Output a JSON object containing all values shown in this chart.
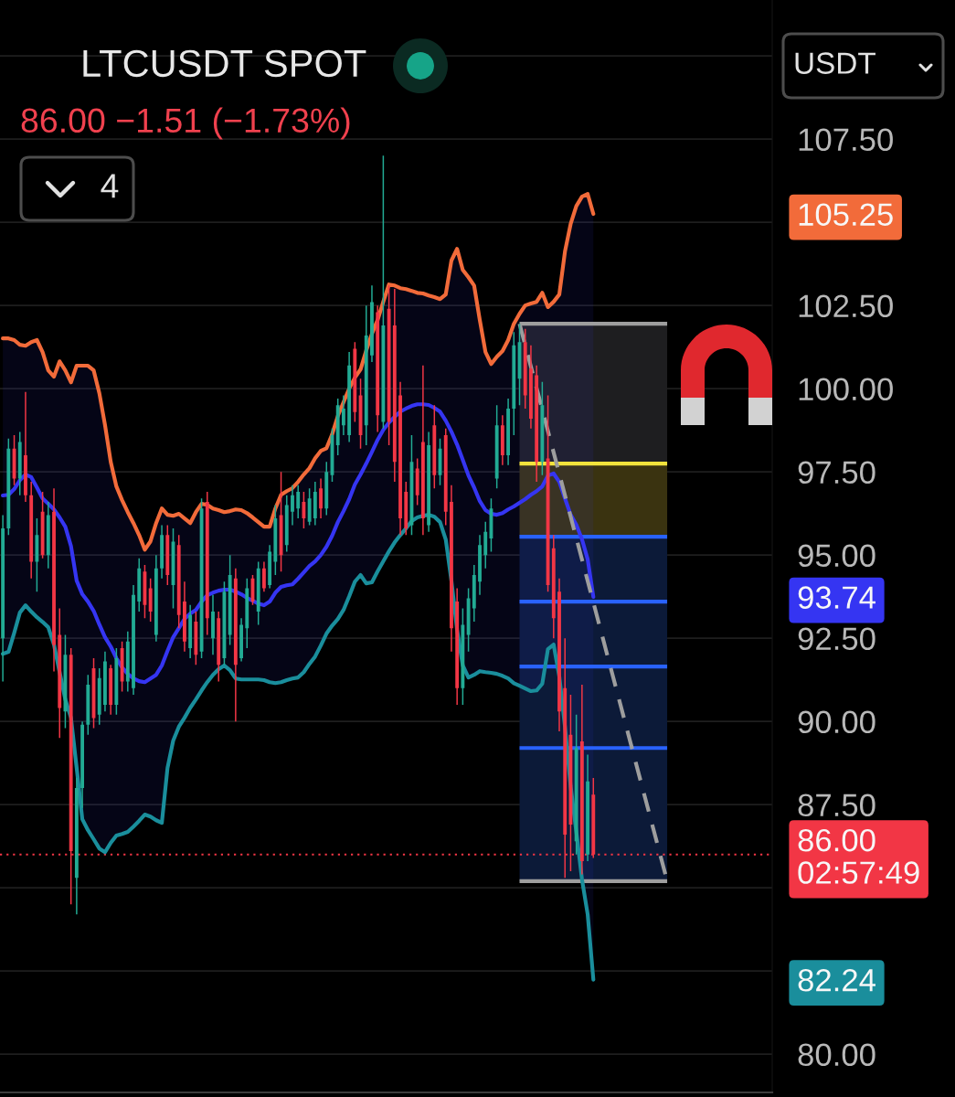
{
  "chart_data": {
    "type": "candlestick",
    "title": "LTCUSDT SPOT",
    "subtitle": "86.00 −1.51 (−1.73%)",
    "annotations": [
      "4",
      "USDT"
    ],
    "categories": [
      null,
      null,
      null,
      null,
      null,
      null,
      null,
      null,
      null,
      null,
      null,
      null,
      null,
      null,
      null,
      null,
      null,
      null,
      null,
      null,
      null,
      null,
      null,
      null,
      null,
      null,
      null,
      null,
      null,
      null,
      null,
      null,
      null,
      null,
      null,
      null,
      null,
      null,
      null,
      null,
      null,
      null,
      null,
      null,
      null,
      null,
      null,
      null,
      null,
      null,
      null,
      null,
      null,
      null,
      null,
      null,
      null,
      null,
      null,
      null,
      null,
      null,
      null,
      null,
      null,
      null,
      null,
      null,
      null,
      null,
      null,
      null,
      null,
      null,
      null,
      null,
      null,
      null,
      null,
      null,
      null,
      null,
      null,
      null,
      null,
      null,
      null,
      null,
      null,
      null,
      null,
      null,
      null,
      null,
      null,
      null,
      null,
      null,
      null,
      null,
      null,
      null,
      null,
      null,
      null,
      null,
      null,
      null,
      null,
      null,
      null,
      null,
      null,
      null,
      null,
      null,
      null,
      null,
      null,
      null,
      null,
      null,
      null,
      null,
      null,
      null,
      null,
      null,
      null,
      null,
      null,
      null,
      null,
      null,
      null,
      null
    ],
    "ohlc": [
      [
        92.5,
        96.2,
        91.2,
        95.8
      ],
      [
        95.8,
        98.5,
        95.6,
        98.2
      ],
      [
        98.2,
        98.6,
        97.1,
        97.3
      ],
      [
        97.3,
        98.7,
        96.8,
        98.4
      ],
      [
        98.0,
        99.9,
        96.6,
        96.8
      ],
      [
        96.8,
        97.2,
        94.3,
        94.8
      ],
      [
        94.8,
        96.1,
        93.9,
        95.6
      ],
      [
        96.3,
        96.9,
        94.9,
        95.0
      ],
      [
        95.0,
        96.6,
        94.6,
        96.2
      ],
      [
        96.3,
        97.0,
        91.5,
        92.3
      ],
      [
        92.6,
        93.4,
        89.5,
        90.4
      ],
      [
        90.3,
        92.6,
        89.8,
        92.0
      ],
      [
        92.0,
        92.2,
        84.5,
        86.1
      ],
      [
        85.3,
        88.3,
        84.2,
        88.0
      ],
      [
        88.0,
        90.0,
        87.4,
        89.9
      ],
      [
        89.9,
        91.4,
        89.6,
        91.1
      ],
      [
        91.6,
        91.9,
        89.8,
        90.1
      ],
      [
        90.2,
        91.6,
        89.9,
        91.3
      ],
      [
        90.5,
        92.1,
        90.3,
        91.8
      ],
      [
        91.6,
        91.7,
        90.2,
        90.5
      ],
      [
        90.5,
        92.2,
        90.2,
        91.9
      ],
      [
        92.2,
        92.4,
        90.9,
        91.2
      ],
      [
        91.2,
        92.7,
        90.9,
        92.4
      ],
      [
        91.0,
        94.1,
        90.8,
        93.8
      ],
      [
        93.6,
        94.9,
        93.3,
        94.6
      ],
      [
        94.5,
        94.7,
        93.1,
        93.5
      ],
      [
        94.0,
        94.3,
        93.0,
        93.3
      ],
      [
        92.6,
        95.0,
        92.4,
        94.6
      ],
      [
        94.6,
        95.9,
        94.3,
        95.6
      ],
      [
        95.6,
        95.9,
        94.1,
        94.4
      ],
      [
        94.1,
        95.8,
        93.4,
        95.4
      ],
      [
        95.3,
        95.6,
        92.8,
        93.2
      ],
      [
        93.6,
        94.2,
        92.1,
        92.4
      ],
      [
        92.2,
        93.5,
        91.9,
        93.2
      ],
      [
        93.0,
        93.3,
        91.7,
        92.0
      ],
      [
        92.1,
        96.7,
        91.9,
        96.4
      ],
      [
        96.6,
        96.9,
        92.6,
        93.1
      ],
      [
        92.5,
        93.8,
        92.0,
        93.3
      ],
      [
        93.1,
        93.3,
        91.2,
        91.7
      ],
      [
        91.9,
        94.2,
        91.7,
        93.9
      ],
      [
        92.6,
        95.0,
        92.3,
        94.4
      ],
      [
        94.3,
        94.6,
        90.0,
        91.7
      ],
      [
        91.9,
        93.1,
        91.8,
        92.9
      ],
      [
        92.8,
        94.3,
        92.2,
        94.0
      ],
      [
        94.3,
        94.4,
        93.5,
        93.6
      ],
      [
        93.3,
        94.8,
        92.9,
        94.6
      ],
      [
        94.6,
        94.8,
        93.9,
        94.0
      ],
      [
        94.1,
        95.3,
        94.0,
        95.1
      ],
      [
        94.8,
        96.5,
        94.4,
        96.1
      ],
      [
        96.2,
        97.5,
        94.5,
        95.0
      ],
      [
        95.3,
        96.8,
        95.1,
        96.5
      ],
      [
        96.3,
        97.1,
        95.9,
        96.8
      ],
      [
        96.4,
        97.1,
        96.1,
        96.9
      ],
      [
        96.6,
        96.9,
        95.8,
        96.1
      ],
      [
        96.0,
        97.0,
        95.9,
        96.7
      ],
      [
        96.1,
        97.2,
        95.9,
        96.9
      ],
      [
        97.0,
        97.3,
        96.1,
        96.4
      ],
      [
        96.4,
        97.8,
        96.2,
        97.5
      ],
      [
        97.4,
        98.8,
        97.2,
        98.6
      ],
      [
        98.3,
        99.7,
        98.0,
        99.5
      ],
      [
        98.9,
        99.8,
        98.6,
        99.4
      ],
      [
        98.6,
        101.1,
        98.4,
        100.7
      ],
      [
        101.2,
        101.4,
        99.0,
        99.3
      ],
      [
        99.8,
        100.3,
        98.2,
        98.6
      ],
      [
        98.9,
        102.5,
        98.3,
        101.6
      ],
      [
        101.0,
        103.1,
        100.8,
        102.6
      ],
      [
        102.3,
        102.5,
        98.7,
        99.2
      ],
      [
        99.0,
        107.0,
        98.8,
        101.9
      ],
      [
        102.4,
        103.1,
        98.3,
        99.0
      ],
      [
        101.9,
        103.0,
        97.2,
        97.8
      ],
      [
        99.8,
        100.2,
        95.6,
        96.1
      ],
      [
        96.9,
        97.2,
        95.6,
        95.8
      ],
      [
        95.9,
        98.6,
        95.6,
        97.8
      ],
      [
        97.6,
        97.9,
        96.5,
        96.8
      ],
      [
        98.4,
        100.7,
        95.6,
        96.1
      ],
      [
        95.9,
        98.7,
        95.7,
        98.3
      ],
      [
        98.9,
        99.5,
        97.0,
        97.4
      ],
      [
        97.4,
        98.5,
        97.1,
        98.2
      ],
      [
        98.6,
        98.8,
        95.9,
        96.3
      ],
      [
        96.6,
        97.1,
        92.1,
        92.8
      ],
      [
        93.6,
        94.0,
        90.5,
        91.0
      ],
      [
        91.0,
        93.4,
        90.5,
        92.9
      ],
      [
        92.6,
        94.0,
        92.1,
        93.7
      ],
      [
        93.4,
        94.7,
        93.0,
        94.4
      ],
      [
        94.2,
        95.6,
        93.8,
        95.3
      ],
      [
        95.0,
        96.0,
        94.6,
        95.7
      ],
      [
        95.5,
        96.7,
        95.1,
        96.4
      ],
      [
        97.3,
        99.5,
        97.0,
        98.9
      ],
      [
        98.9,
        99.2,
        97.7,
        98.0
      ],
      [
        98.0,
        99.7,
        97.7,
        99.4
      ],
      [
        99.4,
        101.7,
        98.6,
        101.3
      ],
      [
        100.3,
        101.95,
        99.5,
        101.4
      ],
      [
        101.4,
        101.8,
        99.4,
        99.8
      ],
      [
        100.6,
        101.3,
        98.8,
        99.1
      ],
      [
        100.4,
        100.7,
        97.2,
        97.8
      ],
      [
        97.8,
        100.2,
        97.4,
        99.5
      ],
      [
        97.9,
        99.8,
        93.9,
        94.1
      ],
      [
        95.2,
        95.6,
        92.5,
        93.1
      ],
      [
        93.9,
        94.3,
        89.7,
        90.3
      ],
      [
        91.0,
        92.5,
        85.3,
        86.6
      ],
      [
        89.6,
        90.8,
        85.5,
        86.9
      ],
      [
        86.4,
        90.2,
        86.0,
        89.2
      ],
      [
        89.4,
        91.1,
        85.4,
        85.8
      ],
      [
        86.0,
        89.0,
        85.8,
        88.2
      ],
      [
        87.8,
        88.3,
        85.9,
        86.0
      ],
      null,
      null,
      null,
      null,
      null,
      null,
      null,
      null,
      null,
      null,
      null,
      null,
      null,
      null,
      null,
      null,
      null,
      null,
      null,
      null,
      null,
      null,
      null,
      null,
      null,
      null,
      null,
      null,
      null,
      null,
      null
    ],
    "colors": [
      "#22ab94",
      "#22ab94",
      "#f23645",
      "#22ab94",
      "#f23645",
      "#f23645",
      "#22ab94",
      "#f23645",
      "#22ab94",
      "#f23645",
      "#f23645",
      "#22ab94",
      "#f23645",
      "#22ab94",
      "#22ab94",
      "#22ab94",
      "#f23645",
      "#22ab94",
      "#22ab94",
      "#f23645",
      "#22ab94",
      "#f23645",
      "#22ab94",
      "#22ab94",
      "#22ab94",
      "#f23645",
      "#f23645",
      "#22ab94",
      "#22ab94",
      "#f23645",
      "#22ab94",
      "#f23645",
      "#f23645",
      "#22ab94",
      "#f23645",
      "#22ab94",
      "#f23645",
      "#22ab94",
      "#f23645",
      "#22ab94",
      "#22ab94",
      "#f23645",
      "#22ab94",
      "#22ab94",
      "#f23645",
      "#22ab94",
      "#f23645",
      "#22ab94",
      "#22ab94",
      "#f23645",
      "#22ab94",
      "#22ab94",
      "#22ab94",
      "#f23645",
      "#22ab94",
      "#22ab94",
      "#f23645",
      "#22ab94",
      "#22ab94",
      "#22ab94",
      "#22ab94",
      "#22ab94",
      "#f23645",
      "#f23645",
      "#22ab94",
      "#22ab94",
      "#f23645",
      "#22ab94",
      "#f23645",
      "#f23645",
      "#f23645",
      "#f23645",
      "#22ab94",
      "#f23645",
      "#f23645",
      "#22ab94",
      "#f23645",
      "#22ab94",
      "#f23645",
      "#f23645",
      "#f23645",
      "#22ab94",
      "#22ab94",
      "#22ab94",
      "#22ab94",
      "#22ab94",
      "#22ab94",
      "#22ab94",
      "#f23645",
      "#22ab94",
      "#22ab94",
      "#22ab94",
      "#f23645",
      "#f23645",
      "#f23645",
      "#22ab94",
      "#f23645",
      "#f23645",
      "#f23645",
      "#f23645",
      "#f23645",
      "#22ab94",
      "#f23645",
      "#22ab94",
      "#f23645",
      null,
      null,
      null,
      null,
      null,
      null,
      null,
      null,
      null,
      null,
      null,
      null,
      null,
      null,
      null,
      null,
      null,
      null,
      null,
      null,
      null,
      null,
      null,
      null,
      null,
      null,
      null,
      null,
      null,
      null,
      null
    ],
    "series": [
      {
        "type": "line",
        "color": "#f26b3a",
        "values": [
          101.51,
          101.51,
          101.46,
          101.32,
          101.29,
          101.4,
          101.46,
          101.1,
          100.55,
          100.36,
          100.82,
          100.55,
          100.19,
          100.69,
          100.69,
          100.69,
          100.55,
          99.86,
          98.9,
          97.8,
          97.06,
          96.65,
          96.29,
          95.96,
          95.6,
          95.16,
          95.41,
          95.96,
          96.4,
          96.21,
          96.18,
          96.24,
          96.1,
          95.96,
          96.29,
          96.54,
          96.51,
          96.4,
          96.35,
          96.29,
          96.32,
          96.37,
          96.35,
          96.26,
          96.13,
          95.99,
          95.85,
          95.85,
          96.4,
          96.81,
          96.92,
          97.01,
          97.2,
          97.42,
          97.61,
          97.91,
          98.13,
          98.21,
          98.63,
          99.18,
          99.59,
          100.0,
          100.33,
          100.58,
          101.15,
          101.65,
          102.06,
          102.61,
          103.13,
          103.1,
          103.02,
          102.99,
          102.94,
          102.88,
          102.86,
          102.8,
          102.75,
          102.69,
          102.83,
          103.85,
          104.2,
          103.57,
          103.35,
          103.1,
          102.06,
          101.1,
          100.74,
          100.96,
          101.13,
          101.46,
          101.95,
          102.25,
          102.5,
          102.56,
          102.61,
          102.88,
          102.45,
          102.61,
          102.83,
          104.12,
          104.95,
          105.49,
          105.77,
          105.85,
          105.25,
          null,
          null,
          null,
          null,
          null,
          null,
          null,
          null,
          null,
          null,
          null,
          null,
          null,
          null,
          null,
          null,
          null,
          null,
          null,
          null,
          null,
          null,
          null,
          null,
          null,
          null,
          null,
          null,
          null,
          null,
          null
        ]
      },
      {
        "type": "line",
        "color": "#3535f2",
        "values": [
          96.79,
          96.81,
          96.98,
          97.25,
          97.42,
          97.34,
          97.03,
          96.7,
          96.54,
          96.37,
          96.13,
          95.85,
          95.27,
          94.23,
          93.82,
          93.6,
          93.32,
          92.91,
          92.53,
          92.25,
          91.9,
          91.62,
          91.43,
          91.29,
          91.21,
          91.18,
          91.29,
          91.4,
          91.68,
          92.12,
          92.53,
          92.8,
          93.08,
          93.24,
          93.35,
          93.6,
          93.79,
          93.87,
          93.93,
          93.96,
          93.96,
          93.9,
          93.82,
          93.71,
          93.63,
          93.54,
          93.49,
          93.6,
          93.87,
          94.04,
          94.09,
          94.12,
          94.29,
          94.48,
          94.67,
          94.81,
          95.0,
          95.25,
          95.58,
          95.99,
          96.32,
          96.68,
          97.12,
          97.42,
          97.75,
          98.1,
          98.46,
          98.76,
          98.98,
          99.15,
          99.31,
          99.4,
          99.48,
          99.53,
          99.53,
          99.51,
          99.42,
          99.31,
          99.04,
          98.71,
          98.32,
          97.86,
          97.39,
          97.03,
          96.62,
          96.35,
          96.24,
          96.21,
          96.26,
          96.37,
          96.46,
          96.57,
          96.68,
          96.81,
          96.92,
          97.06,
          97.39,
          97.45,
          97.2,
          96.7,
          96.21,
          95.91,
          95.47,
          94.87,
          93.74,
          null,
          null,
          null,
          null,
          null,
          null,
          null,
          null,
          null,
          null,
          null,
          null,
          null,
          null,
          null,
          null,
          null,
          null,
          null,
          null,
          null,
          null,
          null,
          null,
          null,
          null,
          null,
          null,
          null,
          null,
          null
        ],
        "lower": [
          92.03,
          92.09,
          92.66,
          93.27,
          93.49,
          93.3,
          93.13,
          92.99,
          92.83,
          92.31,
          91.48,
          90.66,
          90.11,
          88.6,
          87.06,
          86.73,
          86.46,
          86.18,
          86.07,
          86.35,
          86.57,
          86.62,
          86.68,
          86.84,
          87.01,
          87.2,
          87.14,
          87.03,
          86.95,
          88.6,
          89.42,
          89.84,
          90.11,
          90.41,
          90.66,
          90.93,
          91.18,
          91.4,
          91.57,
          91.68,
          91.54,
          91.29,
          91.26,
          91.26,
          91.26,
          91.26,
          91.24,
          91.18,
          91.15,
          91.18,
          91.24,
          91.29,
          91.32,
          91.48,
          91.73,
          91.95,
          92.28,
          92.64,
          92.88,
          93.08,
          93.35,
          93.76,
          94.2,
          94.4,
          94.15,
          94.18,
          94.51,
          94.81,
          95.11,
          95.38,
          95.6,
          95.8,
          96.02,
          96.13,
          96.18,
          96.21,
          96.15,
          95.99,
          95.47,
          94.23,
          92.75,
          91.68,
          91.32,
          91.4,
          91.51,
          91.48,
          91.46,
          91.43,
          91.37,
          91.29,
          91.15,
          91.07,
          90.99,
          90.91,
          90.93,
          91.13,
          92.17,
          92.31,
          91.35,
          89.84,
          88.05,
          86.68,
          85.25,
          84.2,
          82.24,
          null,
          null,
          null,
          null,
          null,
          null,
          null,
          null,
          null,
          null,
          null,
          null,
          null,
          null,
          null,
          null,
          null,
          null,
          null,
          null,
          null,
          null,
          null,
          null,
          null,
          null,
          null,
          null,
          null,
          null,
          null
        ],
        "upper": [
          101.51,
          101.51,
          101.46,
          101.32,
          101.29,
          101.4,
          101.46,
          101.1,
          100.55,
          100.36,
          100.82,
          100.55,
          100.19,
          100.69,
          100.69,
          100.69,
          100.55,
          99.86,
          98.9,
          97.8,
          97.06,
          96.65,
          96.29,
          95.96,
          95.6,
          95.16,
          95.41,
          95.96,
          96.4,
          96.21,
          96.18,
          96.24,
          96.1,
          95.96,
          96.29,
          96.54,
          96.51,
          96.4,
          96.35,
          96.29,
          96.32,
          96.37,
          96.35,
          96.26,
          96.13,
          95.99,
          95.85,
          95.85,
          96.4,
          96.81,
          96.92,
          97.01,
          97.2,
          97.42,
          97.61,
          97.91,
          98.13,
          98.21,
          98.63,
          99.18,
          99.59,
          100.0,
          100.33,
          100.58,
          101.15,
          101.65,
          102.06,
          102.61,
          103.13,
          103.1,
          103.02,
          102.99,
          102.94,
          102.88,
          102.86,
          102.8,
          102.75,
          102.69,
          102.83,
          103.85,
          104.2,
          103.57,
          103.35,
          103.1,
          102.06,
          101.1,
          100.74,
          100.96,
          101.13,
          101.46,
          101.95,
          102.25,
          102.5,
          102.56,
          102.61,
          102.88,
          102.45,
          102.61,
          102.83,
          104.12,
          104.95,
          105.49,
          105.77,
          105.85,
          105.25,
          null,
          null,
          null,
          null,
          null,
          null,
          null,
          null,
          null,
          null,
          null,
          null,
          null,
          null,
          null,
          null,
          null,
          null,
          null,
          null,
          null,
          null,
          null,
          null,
          null,
          null,
          null,
          null,
          null,
          null,
          null
        ]
      },
      {
        "type": "line",
        "color": "#1a8e9c",
        "values": [
          92.03,
          92.09,
          92.66,
          93.27,
          93.49,
          93.3,
          93.13,
          92.99,
          92.83,
          92.31,
          91.48,
          90.66,
          90.11,
          88.6,
          87.06,
          86.73,
          86.46,
          86.18,
          86.07,
          86.35,
          86.57,
          86.62,
          86.68,
          86.84,
          87.01,
          87.2,
          87.14,
          87.03,
          86.95,
          88.6,
          89.42,
          89.84,
          90.11,
          90.41,
          90.66,
          90.93,
          91.18,
          91.4,
          91.57,
          91.68,
          91.54,
          91.29,
          91.26,
          91.26,
          91.26,
          91.26,
          91.24,
          91.18,
          91.15,
          91.18,
          91.24,
          91.29,
          91.32,
          91.48,
          91.73,
          91.95,
          92.28,
          92.64,
          92.88,
          93.08,
          93.35,
          93.76,
          94.2,
          94.4,
          94.15,
          94.18,
          94.51,
          94.81,
          95.11,
          95.38,
          95.6,
          95.8,
          96.02,
          96.13,
          96.18,
          96.21,
          96.15,
          95.99,
          95.47,
          94.23,
          92.75,
          91.68,
          91.32,
          91.4,
          91.51,
          91.48,
          91.46,
          91.43,
          91.37,
          91.29,
          91.15,
          91.07,
          90.99,
          90.91,
          90.93,
          91.13,
          92.17,
          92.31,
          91.35,
          89.84,
          88.05,
          86.68,
          85.25,
          84.2,
          82.24,
          null,
          null,
          null,
          null,
          null,
          null,
          null,
          null,
          null,
          null,
          null,
          null,
          null,
          null,
          null,
          null,
          null,
          null,
          null,
          null,
          null,
          null,
          null,
          null,
          null,
          null,
          null,
          null,
          null,
          null,
          null
        ]
      },
      {
        "type": "line",
        "color": "#9e9e9e",
        "line_style": "dashed",
        "values": [
          null,
          null,
          null,
          null,
          null,
          null,
          null,
          null,
          null,
          null,
          null,
          null,
          null,
          null,
          null,
          null,
          null,
          null,
          null,
          null,
          null,
          null,
          null,
          null,
          null,
          null,
          null,
          null,
          null,
          null,
          null,
          null,
          null,
          null,
          null,
          null,
          null,
          null,
          null,
          null,
          null,
          null,
          null,
          null,
          null,
          null,
          null,
          null,
          null,
          null,
          null,
          null,
          null,
          null,
          null,
          null,
          null,
          null,
          null,
          null,
          null,
          null,
          null,
          null,
          null,
          null,
          null,
          null,
          null,
          null,
          null,
          null,
          null,
          null,
          null,
          null,
          null,
          null,
          null,
          null,
          null,
          null,
          null,
          null,
          null,
          null,
          null,
          null,
          null,
          null,
          null,
          101.95,
          null,
          null,
          null,
          null,
          null,
          null,
          null,
          null,
          null,
          null,
          null,
          null,
          null,
          null,
          null,
          null,
          null,
          null,
          null,
          null,
          null,
          null,
          null,
          null,
          null,
          85.2,
          null,
          null,
          null,
          null,
          null,
          null,
          null,
          null,
          null,
          null,
          null,
          null,
          null,
          null,
          null,
          null,
          null,
          null
        ]
      }
    ],
    "ylim": [
      78.85,
      111.68
    ],
    "yticks": [
      {
        "value": 80,
        "label": "80.00"
      },
      {
        "value": 82.24,
        "label": "82.24"
      },
      {
        "value": 82.5,
        "label": null
      },
      {
        "value": 85,
        "label": null
      },
      {
        "value": 87.5,
        "label": "87.50"
      },
      {
        "value": 90,
        "label": "90.00"
      },
      {
        "value": 92.5,
        "label": "92.50"
      },
      {
        "value": 93.74,
        "label": "93.74"
      },
      {
        "value": 95,
        "label": "95.00"
      },
      {
        "value": 97.5,
        "label": "97.50"
      },
      {
        "value": 100,
        "label": "100.00"
      },
      {
        "value": 102.5,
        "label": "102.50"
      },
      {
        "value": 105,
        "label": null
      },
      {
        "value": 105.25,
        "label": "105.25"
      },
      {
        "value": 107.5,
        "label": "107.50"
      },
      {
        "value": 110,
        "label": null
      }
    ],
    "grid": "y",
    "tick_labels": "y",
    "ref_lines": [
      {
        "axis": "y",
        "value": 86.0,
        "label": "86.00\n02:57:49",
        "color": "#f23645",
        "line_style": "dotted"
      },
      {
        "axis": "y",
        "value": 101.95,
        "color": "#9e9e9e"
      },
      {
        "axis": "y",
        "value": 97.75,
        "color": "#f2e33c"
      },
      {
        "axis": "y",
        "value": 95.55,
        "color": "#2962ff"
      },
      {
        "axis": "y",
        "value": 93.6,
        "color": "#2962ff"
      },
      {
        "axis": "y",
        "value": 91.65,
        "color": "#2962ff"
      },
      {
        "axis": "y",
        "value": 89.2,
        "color": "#2962ff"
      },
      {
        "axis": "y",
        "value": 85.2,
        "color": "#9e9e9e"
      }
    ],
    "bands": [
      {
        "axis": "y",
        "from": 97.75,
        "to": 101.95,
        "color": "#1e1e20"
      },
      {
        "axis": "y",
        "from": 95.55,
        "to": 97.75,
        "color": "#3a3310"
      },
      {
        "axis": "y",
        "from": 85.2,
        "to": 95.55,
        "color": "#0c1a38"
      }
    ]
  }
}
